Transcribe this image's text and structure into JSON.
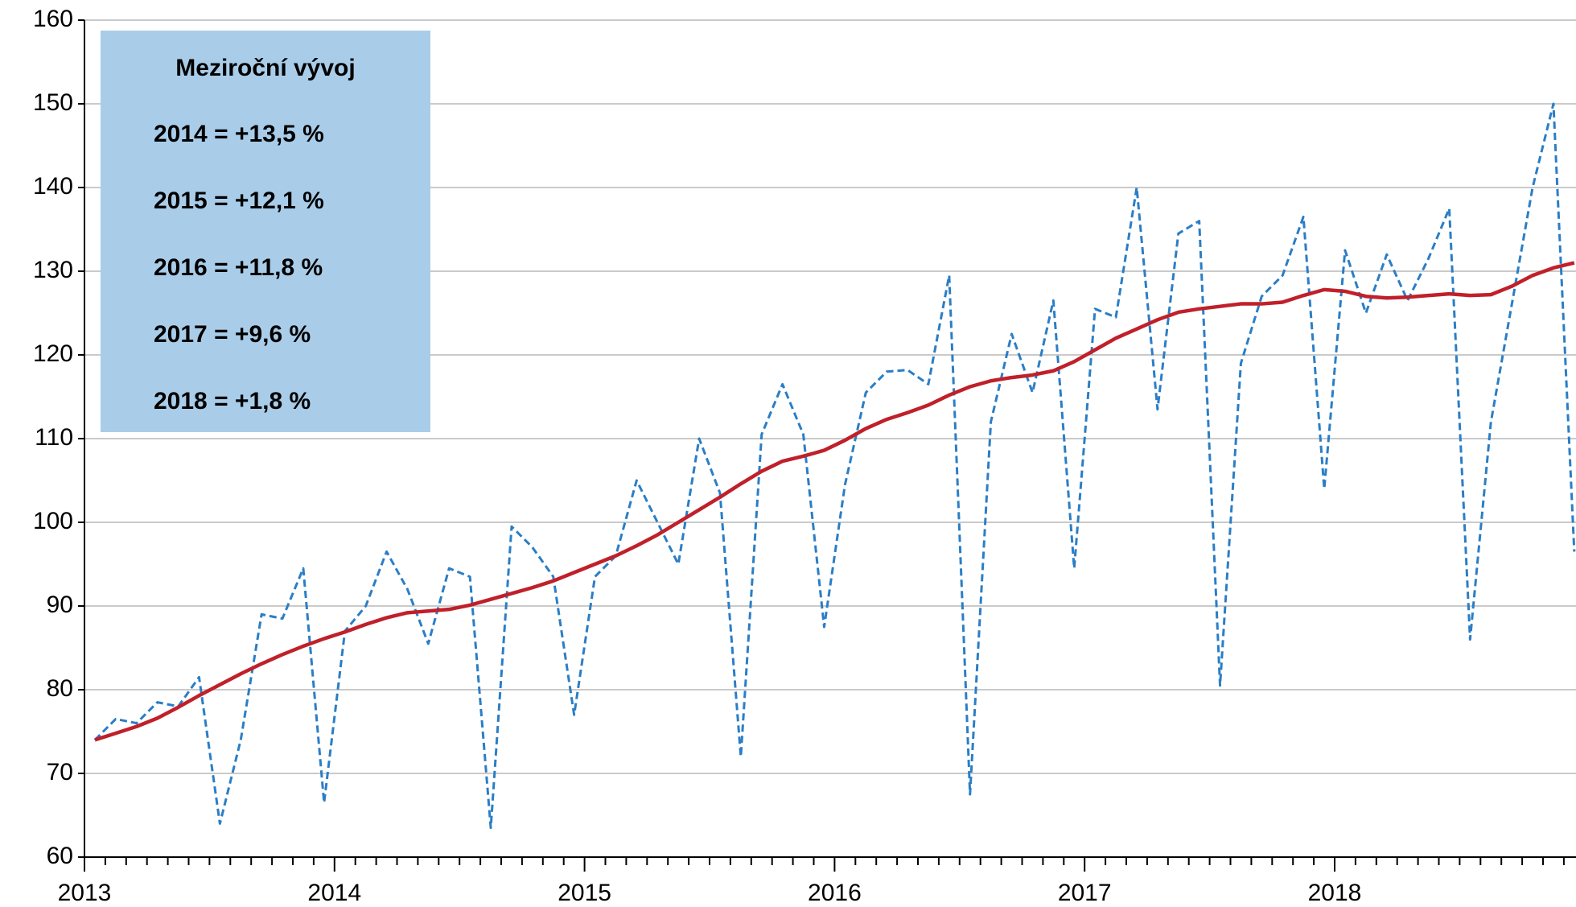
{
  "chart_data": {
    "type": "line",
    "categories": [
      "2013",
      null,
      null,
      null,
      null,
      null,
      null,
      null,
      null,
      null,
      null,
      null,
      "2014",
      null,
      null,
      null,
      null,
      null,
      null,
      null,
      null,
      null,
      null,
      null,
      "2015",
      null,
      null,
      null,
      null,
      null,
      null,
      null,
      null,
      null,
      null,
      null,
      "2016",
      null,
      null,
      null,
      null,
      null,
      null,
      null,
      null,
      null,
      null,
      null,
      "2017",
      null,
      null,
      null,
      null,
      null,
      null,
      null,
      null,
      null,
      null,
      null,
      "2018",
      null,
      null,
      null,
      null,
      null,
      null,
      null,
      null,
      null,
      null,
      null
    ],
    "series": [
      {
        "color": "#2a7ec6",
        "dashed": true,
        "values": [
          74,
          76.5,
          76,
          78.5,
          78,
          81.5,
          64,
          74,
          89,
          88.5,
          94.5,
          66.5,
          87,
          90,
          96.5,
          92,
          85.5,
          94.5,
          93.5,
          63.5,
          99.5,
          97,
          93.5,
          77,
          93.5,
          96,
          105,
          100,
          95,
          110,
          103.5,
          72,
          110.5,
          116.5,
          110.5,
          87.5,
          104.5,
          115.5,
          118,
          118.2,
          116.5,
          129.5,
          67.5,
          112,
          122.5,
          115.5,
          126.5,
          94.5,
          125.5,
          124.5,
          140,
          113.5,
          134.5,
          136,
          80.5,
          119,
          127,
          129.5,
          136.5,
          104,
          132.5,
          125,
          132,
          126.5,
          131.5,
          137.5,
          86,
          112,
          126,
          140,
          150,
          96.5
        ]
      },
      {
        "color": "#c0202a",
        "dashed": false,
        "values": [
          74,
          74.8,
          75.6,
          76.6,
          77.9,
          79.3,
          80.6,
          81.9,
          83.1,
          84.2,
          85.2,
          86.1,
          86.9,
          87.8,
          88.6,
          89.2,
          89.4,
          89.6,
          90.1,
          90.8,
          91.5,
          92.2,
          93,
          94,
          95,
          96,
          97.2,
          98.5,
          100,
          101.5,
          103,
          104.6,
          106.1,
          107.3,
          107.9,
          108.6,
          109.8,
          111.2,
          112.3,
          113.1,
          114,
          115.2,
          116.2,
          116.9,
          117.3,
          117.6,
          118.1,
          119.2,
          120.6,
          122,
          123.1,
          124.2,
          125.1,
          125.5,
          125.8,
          126.1,
          126.1,
          126.3,
          127.1,
          127.8,
          127.6,
          127,
          126.8,
          126.9,
          127.1,
          127.3,
          127.1,
          127.2,
          128.2,
          129.5,
          130.4,
          131
        ]
      }
    ],
    "ylim": [
      60,
      160
    ],
    "yticks": [
      60,
      70,
      80,
      90,
      100,
      110,
      120,
      130,
      140,
      150,
      160
    ],
    "grid": true,
    "annotation": {
      "title": "Meziroční vývoj",
      "lines": [
        "2014 = +13,5 %",
        "2015 = +12,1 %",
        "2016 = +11,8 %",
        "2017 = +9,6 %",
        "2018 = +1,8 %"
      ],
      "color": "#a9cde9"
    }
  }
}
